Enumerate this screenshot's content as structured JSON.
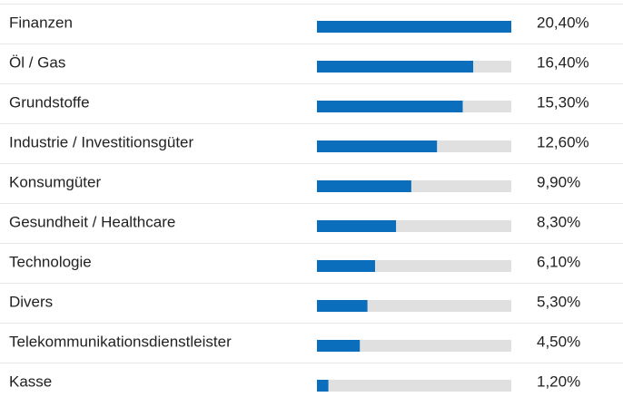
{
  "chart_data": {
    "type": "bar",
    "orientation": "horizontal",
    "categories": [
      "Finanzen",
      "Öl / Gas",
      "Grundstoffe",
      "Industrie / Investitionsgüter",
      "Konsumgüter",
      "Gesundheit / Healthcare",
      "Technologie",
      "Divers",
      "Telekommunikationsdienstleister",
      "Kasse"
    ],
    "values": [
      20.4,
      16.4,
      15.3,
      12.6,
      9.9,
      8.3,
      6.1,
      5.3,
      4.5,
      1.2
    ],
    "value_labels": [
      "20,40%",
      "16,40%",
      "15,30%",
      "12,60%",
      "9,90%",
      "8,30%",
      "6,10%",
      "5,30%",
      "4,50%",
      "1,20%"
    ],
    "color": "#0a6ebd",
    "track_color": "#e0e0e0",
    "xlim": [
      0,
      20.4
    ]
  }
}
